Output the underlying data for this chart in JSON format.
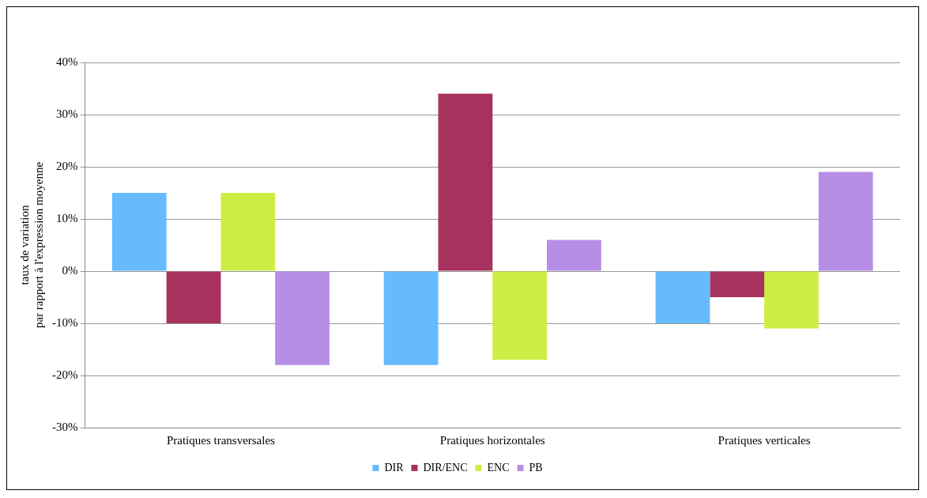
{
  "chart_data": {
    "type": "bar",
    "ylabel": "taux de variation\npar rapport à l'expression moyenne",
    "categories": [
      "Pratiques transversales",
      "Pratiques horizontales",
      "Pratiques verticales"
    ],
    "series": [
      {
        "name": "DIR",
        "color": "#66bbff",
        "values": [
          15,
          -18,
          -10
        ]
      },
      {
        "name": "DIR/ENC",
        "color": "#a8325e",
        "values": [
          -10,
          34,
          -5
        ]
      },
      {
        "name": "ENC",
        "color": "#ccee44",
        "values": [
          15,
          -17,
          -11
        ]
      },
      {
        "name": "PB",
        "color": "#b78ee6",
        "values": [
          -18,
          6,
          19
        ]
      }
    ],
    "ylim": [
      -30,
      40
    ],
    "yticks": [
      {
        "value": -30,
        "label": "-30%"
      },
      {
        "value": -20,
        "label": "-20%"
      },
      {
        "value": -10,
        "label": "-10%"
      },
      {
        "value": 0,
        "label": "0%"
      },
      {
        "value": 10,
        "label": "10%"
      },
      {
        "value": 20,
        "label": "20%"
      },
      {
        "value": 30,
        "label": "30%"
      },
      {
        "value": 40,
        "label": "40%"
      }
    ],
    "grid": "y",
    "legend": "bottom"
  }
}
